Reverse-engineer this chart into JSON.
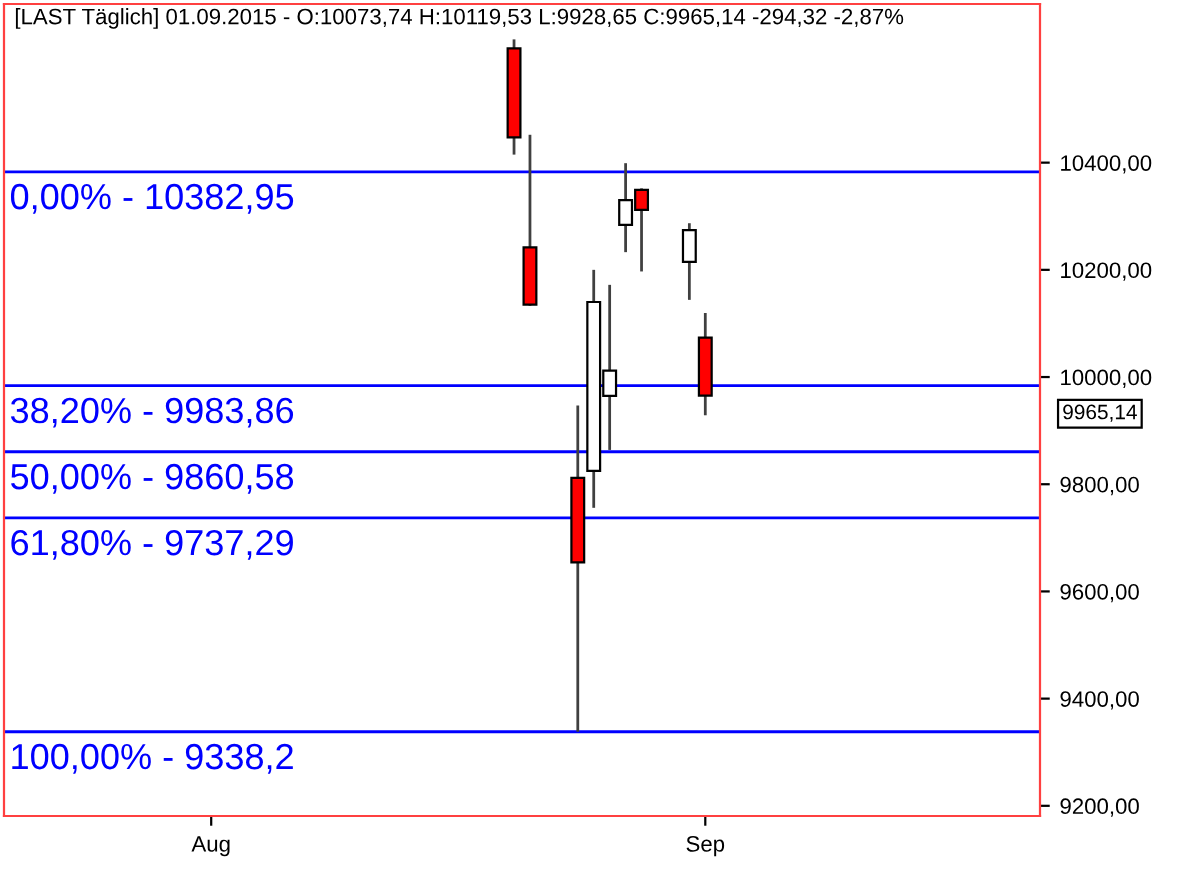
{
  "chart_data": {
    "type": "candlestick",
    "title": "[LAST Täglich] 01.09.2015 - O:10073,74 H:10119,53 L:9928,65 C:9965,14 -294,32 -2,87%",
    "x": [
      "2015-08-20",
      "2015-08-21",
      "2015-08-24",
      "2015-08-25",
      "2015-08-26",
      "2015-08-27",
      "2015-08-28",
      "2015-08-31",
      "2015-09-01"
    ],
    "ohlc": [
      [
        10613,
        10630,
        10415,
        10447
      ],
      [
        10242,
        10452,
        10133,
        10135
      ],
      [
        9812,
        9947,
        9338.2,
        9654
      ],
      [
        9825,
        10200,
        9756,
        10140
      ],
      [
        9965,
        10172,
        9864,
        10012
      ],
      [
        10284,
        10399,
        10233,
        10330
      ],
      [
        10349,
        10352,
        10197,
        10312
      ],
      [
        10215,
        10287,
        10144,
        10274
      ],
      [
        10073.74,
        10119.53,
        9928.65,
        9965.14
      ]
    ],
    "colors": [
      "#ff0000",
      "#ff0000",
      "#ff0000",
      "#ffffff",
      "#ffffff",
      "#ffffff",
      "#ff0000",
      "#ffffff",
      "#ff0000"
    ],
    "xlim": [
      "2015-07-19",
      "2015-09-22"
    ],
    "xticks": [
      {
        "value": "2015-08-01",
        "label": "Aug"
      },
      {
        "value": "2015-09-01",
        "label": "Sep"
      }
    ],
    "ylim": [
      9181,
      10696
    ],
    "yticks": [
      {
        "value": 9200,
        "label": "9200,00"
      },
      {
        "value": 9400,
        "label": "9400,00"
      },
      {
        "value": 9600,
        "label": "9600,00"
      },
      {
        "value": 9800,
        "label": "9800,00"
      },
      {
        "value": 10000,
        "label": "10000,00"
      },
      {
        "value": 10200,
        "label": "10200,00"
      },
      {
        "value": 10400,
        "label": "10400,00"
      }
    ],
    "ref_lines": [
      {
        "axis": "y",
        "value": 10382.95,
        "color": "#0000ff"
      },
      {
        "axis": "y",
        "value": 9983.86,
        "color": "#0000ff"
      },
      {
        "axis": "y",
        "value": 9860.58,
        "color": "#0000ff"
      },
      {
        "axis": "y",
        "value": 9737.29,
        "color": "#0000ff"
      },
      {
        "axis": "y",
        "value": 9338.2,
        "color": "#0000ff"
      }
    ],
    "annotations": [
      "9965,14",
      {
        "text": "0,00% - 10382,95",
        "y": 10382.95
      },
      {
        "text": "38,20% - 9983,86",
        "y": 9983.86
      },
      {
        "text": "50,00% - 9860,58",
        "y": 9860.58
      },
      {
        "text": "61,80% - 9737,29",
        "y": 9737.29
      },
      {
        "text": "100,00% - 9338,2",
        "y": 9338.2
      }
    ],
    "grid": false,
    "legend": false
  }
}
